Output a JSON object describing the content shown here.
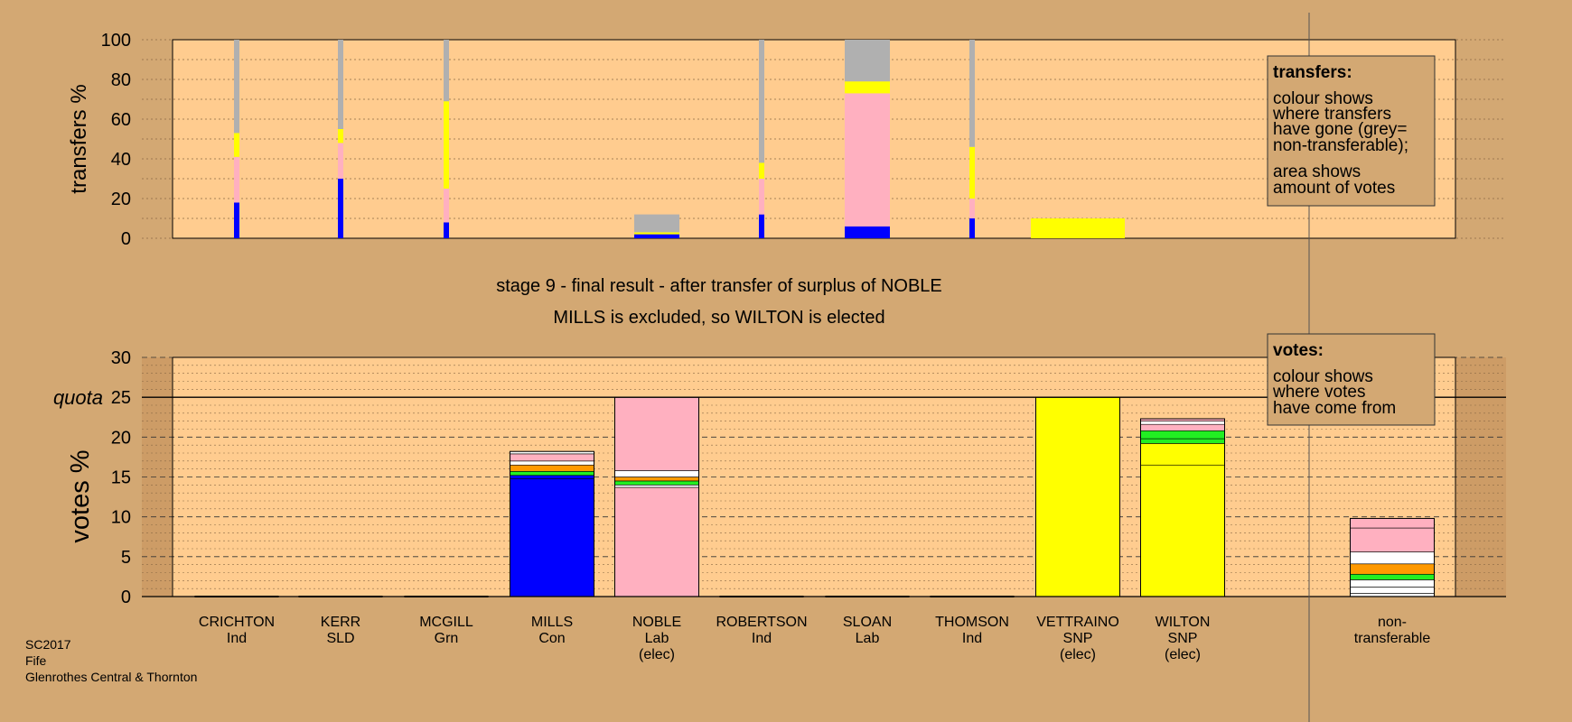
{
  "colors": {
    "background": "#d3a873",
    "plot_area": "#ffcc8f",
    "Con": "#0000ff",
    "Lab": "#ffb0c0",
    "SNP": "#ffff00",
    "Grn": "#22ee22",
    "orange": "#ff9900",
    "white": "#ffffff",
    "nontransferable": "#b0b0b0"
  },
  "header": {
    "line1": "stage 9 - final result - after transfer of surplus of NOBLE",
    "line2": "MILLS is excluded, so WILTON is elected"
  },
  "footer": {
    "line1": "SC2017",
    "line2": "Fife",
    "line3": "Glenrothes Central & Thornton"
  },
  "transfers_legend": {
    "title": "transfers:",
    "lines": [
      "colour shows",
      "where transfers",
      "have gone (grey=",
      "non-transferable);",
      "area shows",
      "amount of votes"
    ]
  },
  "votes_legend": {
    "title": "votes:",
    "lines": [
      "colour shows",
      "where votes",
      "have come from"
    ]
  },
  "chart_data": [
    {
      "type": "bar",
      "ylabel": "transfers %",
      "ylim": [
        0,
        100
      ],
      "yticks": [
        "0",
        "20",
        "40",
        "60",
        "80",
        "100"
      ],
      "grid": true,
      "categories": [
        "CRICHTON",
        "KERR",
        "MCGILL",
        "MILLS",
        "NOBLE",
        "ROBERTSON",
        "SLOAN",
        "THOMSON",
        "VETTRAINO",
        "WILTON"
      ],
      "bars": [
        {
          "category": "CRICHTON",
          "width_relative": "thin",
          "segments": [
            {
              "to": "Con",
              "value": 18
            },
            {
              "to": "Lab",
              "value": 23
            },
            {
              "to": "SNP",
              "value": 12
            },
            {
              "to": "non-transferable",
              "value": 47
            }
          ]
        },
        {
          "category": "KERR",
          "width_relative": "thin",
          "segments": [
            {
              "to": "Con",
              "value": 30
            },
            {
              "to": "Lab",
              "value": 18
            },
            {
              "to": "SNP",
              "value": 7
            },
            {
              "to": "non-transferable",
              "value": 45
            }
          ]
        },
        {
          "category": "MCGILL",
          "width_relative": "thin",
          "segments": [
            {
              "to": "Con",
              "value": 8
            },
            {
              "to": "Lab",
              "value": 17
            },
            {
              "to": "SNP",
              "value": 44
            },
            {
              "to": "non-transferable",
              "value": 31
            }
          ]
        },
        {
          "category": "NOBLE",
          "width_relative": "wide",
          "segments": [
            {
              "to": "Con",
              "value": 2
            },
            {
              "to": "SNP",
              "value": 1
            },
            {
              "to": "non-transferable",
              "value": 9
            }
          ]
        },
        {
          "category": "ROBERTSON",
          "width_relative": "thin",
          "segments": [
            {
              "to": "Con",
              "value": 12
            },
            {
              "to": "Lab",
              "value": 18
            },
            {
              "to": "SNP",
              "value": 8
            },
            {
              "to": "non-transferable",
              "value": 62
            }
          ]
        },
        {
          "category": "SLOAN",
          "width_relative": "wide",
          "segments": [
            {
              "to": "Con",
              "value": 6
            },
            {
              "to": "Lab",
              "value": 67
            },
            {
              "to": "SNP",
              "value": 6
            },
            {
              "to": "non-transferable",
              "value": 21
            }
          ]
        },
        {
          "category": "THOMSON",
          "width_relative": "thin",
          "segments": [
            {
              "to": "Con",
              "value": 10
            },
            {
              "to": "Lab",
              "value": 10
            },
            {
              "to": "SNP",
              "value": 26
            },
            {
              "to": "non-transferable",
              "value": 54
            }
          ]
        },
        {
          "category": "VETTRAINO",
          "width_relative": "wide",
          "segments": [
            {
              "to": "SNP",
              "value": 10
            }
          ]
        }
      ]
    },
    {
      "type": "bar",
      "ylabel": "votes %",
      "ylim": [
        0,
        30
      ],
      "yticks": [
        "0",
        "5",
        "10",
        "15",
        "20",
        "25",
        "30"
      ],
      "quota": {
        "label": "quota",
        "value": 25
      },
      "grid": true,
      "categories": [
        {
          "name": "CRICHTON",
          "party": "Ind",
          "status": ""
        },
        {
          "name": "KERR",
          "party": "SLD",
          "status": ""
        },
        {
          "name": "MCGILL",
          "party": "Grn",
          "status": ""
        },
        {
          "name": "MILLS",
          "party": "Con",
          "status": ""
        },
        {
          "name": "NOBLE",
          "party": "Lab",
          "status": "(elec)"
        },
        {
          "name": "ROBERTSON",
          "party": "Ind",
          "status": ""
        },
        {
          "name": "SLOAN",
          "party": "Lab",
          "status": ""
        },
        {
          "name": "THOMSON",
          "party": "Ind",
          "status": ""
        },
        {
          "name": "VETTRAINO",
          "party": "SNP",
          "status": "(elec)"
        },
        {
          "name": "WILTON",
          "party": "SNP",
          "status": "(elec)"
        },
        {
          "name": "non-",
          "party": "transferable",
          "status": ""
        }
      ],
      "bars": [
        {
          "category": "CRICHTON",
          "segments": []
        },
        {
          "category": "KERR",
          "segments": []
        },
        {
          "category": "MCGILL",
          "segments": []
        },
        {
          "category": "MILLS",
          "segments": [
            {
              "from": "Con",
              "value": 14.8
            },
            {
              "from": "Con",
              "value": 0.4
            },
            {
              "from": "Grn",
              "value": 0.5
            },
            {
              "from": "orange",
              "value": 0.8
            },
            {
              "from": "white",
              "value": 0.5
            },
            {
              "from": "Lab",
              "value": 0.9
            },
            {
              "from": "white",
              "value": 0.3
            }
          ]
        },
        {
          "category": "NOBLE",
          "segments": [
            {
              "from": "Lab",
              "value": 13.7
            },
            {
              "from": "white",
              "value": 0.3
            },
            {
              "from": "Grn",
              "value": 0.5
            },
            {
              "from": "orange",
              "value": 0.5
            },
            {
              "from": "white",
              "value": 0.8
            },
            {
              "from": "Lab",
              "value": 9.2
            }
          ]
        },
        {
          "category": "ROBERTSON",
          "segments": []
        },
        {
          "category": "SLOAN",
          "segments": []
        },
        {
          "category": "THOMSON",
          "segments": []
        },
        {
          "category": "VETTRAINO",
          "segments": [
            {
              "from": "SNP",
              "value": 25.0
            }
          ]
        },
        {
          "category": "WILTON",
          "segments": [
            {
              "from": "SNP",
              "value": 16.5
            },
            {
              "from": "SNP",
              "value": 2.7
            },
            {
              "from": "Grn",
              "value": 0.6
            },
            {
              "from": "Grn",
              "value": 1.0
            },
            {
              "from": "Lab",
              "value": 0.8
            },
            {
              "from": "white",
              "value": 0.4
            },
            {
              "from": "Lab",
              "value": 0.3
            }
          ]
        },
        {
          "category": "non-transferable",
          "segments": [
            {
              "from": "white",
              "value": 0.4
            },
            {
              "from": "white",
              "value": 0.8
            },
            {
              "from": "white",
              "value": 0.9
            },
            {
              "from": "Grn",
              "value": 0.7
            },
            {
              "from": "orange",
              "value": 1.3
            },
            {
              "from": "white",
              "value": 1.5
            },
            {
              "from": "Lab",
              "value": 3.0
            },
            {
              "from": "Lab",
              "value": 1.2
            }
          ]
        }
      ]
    }
  ]
}
